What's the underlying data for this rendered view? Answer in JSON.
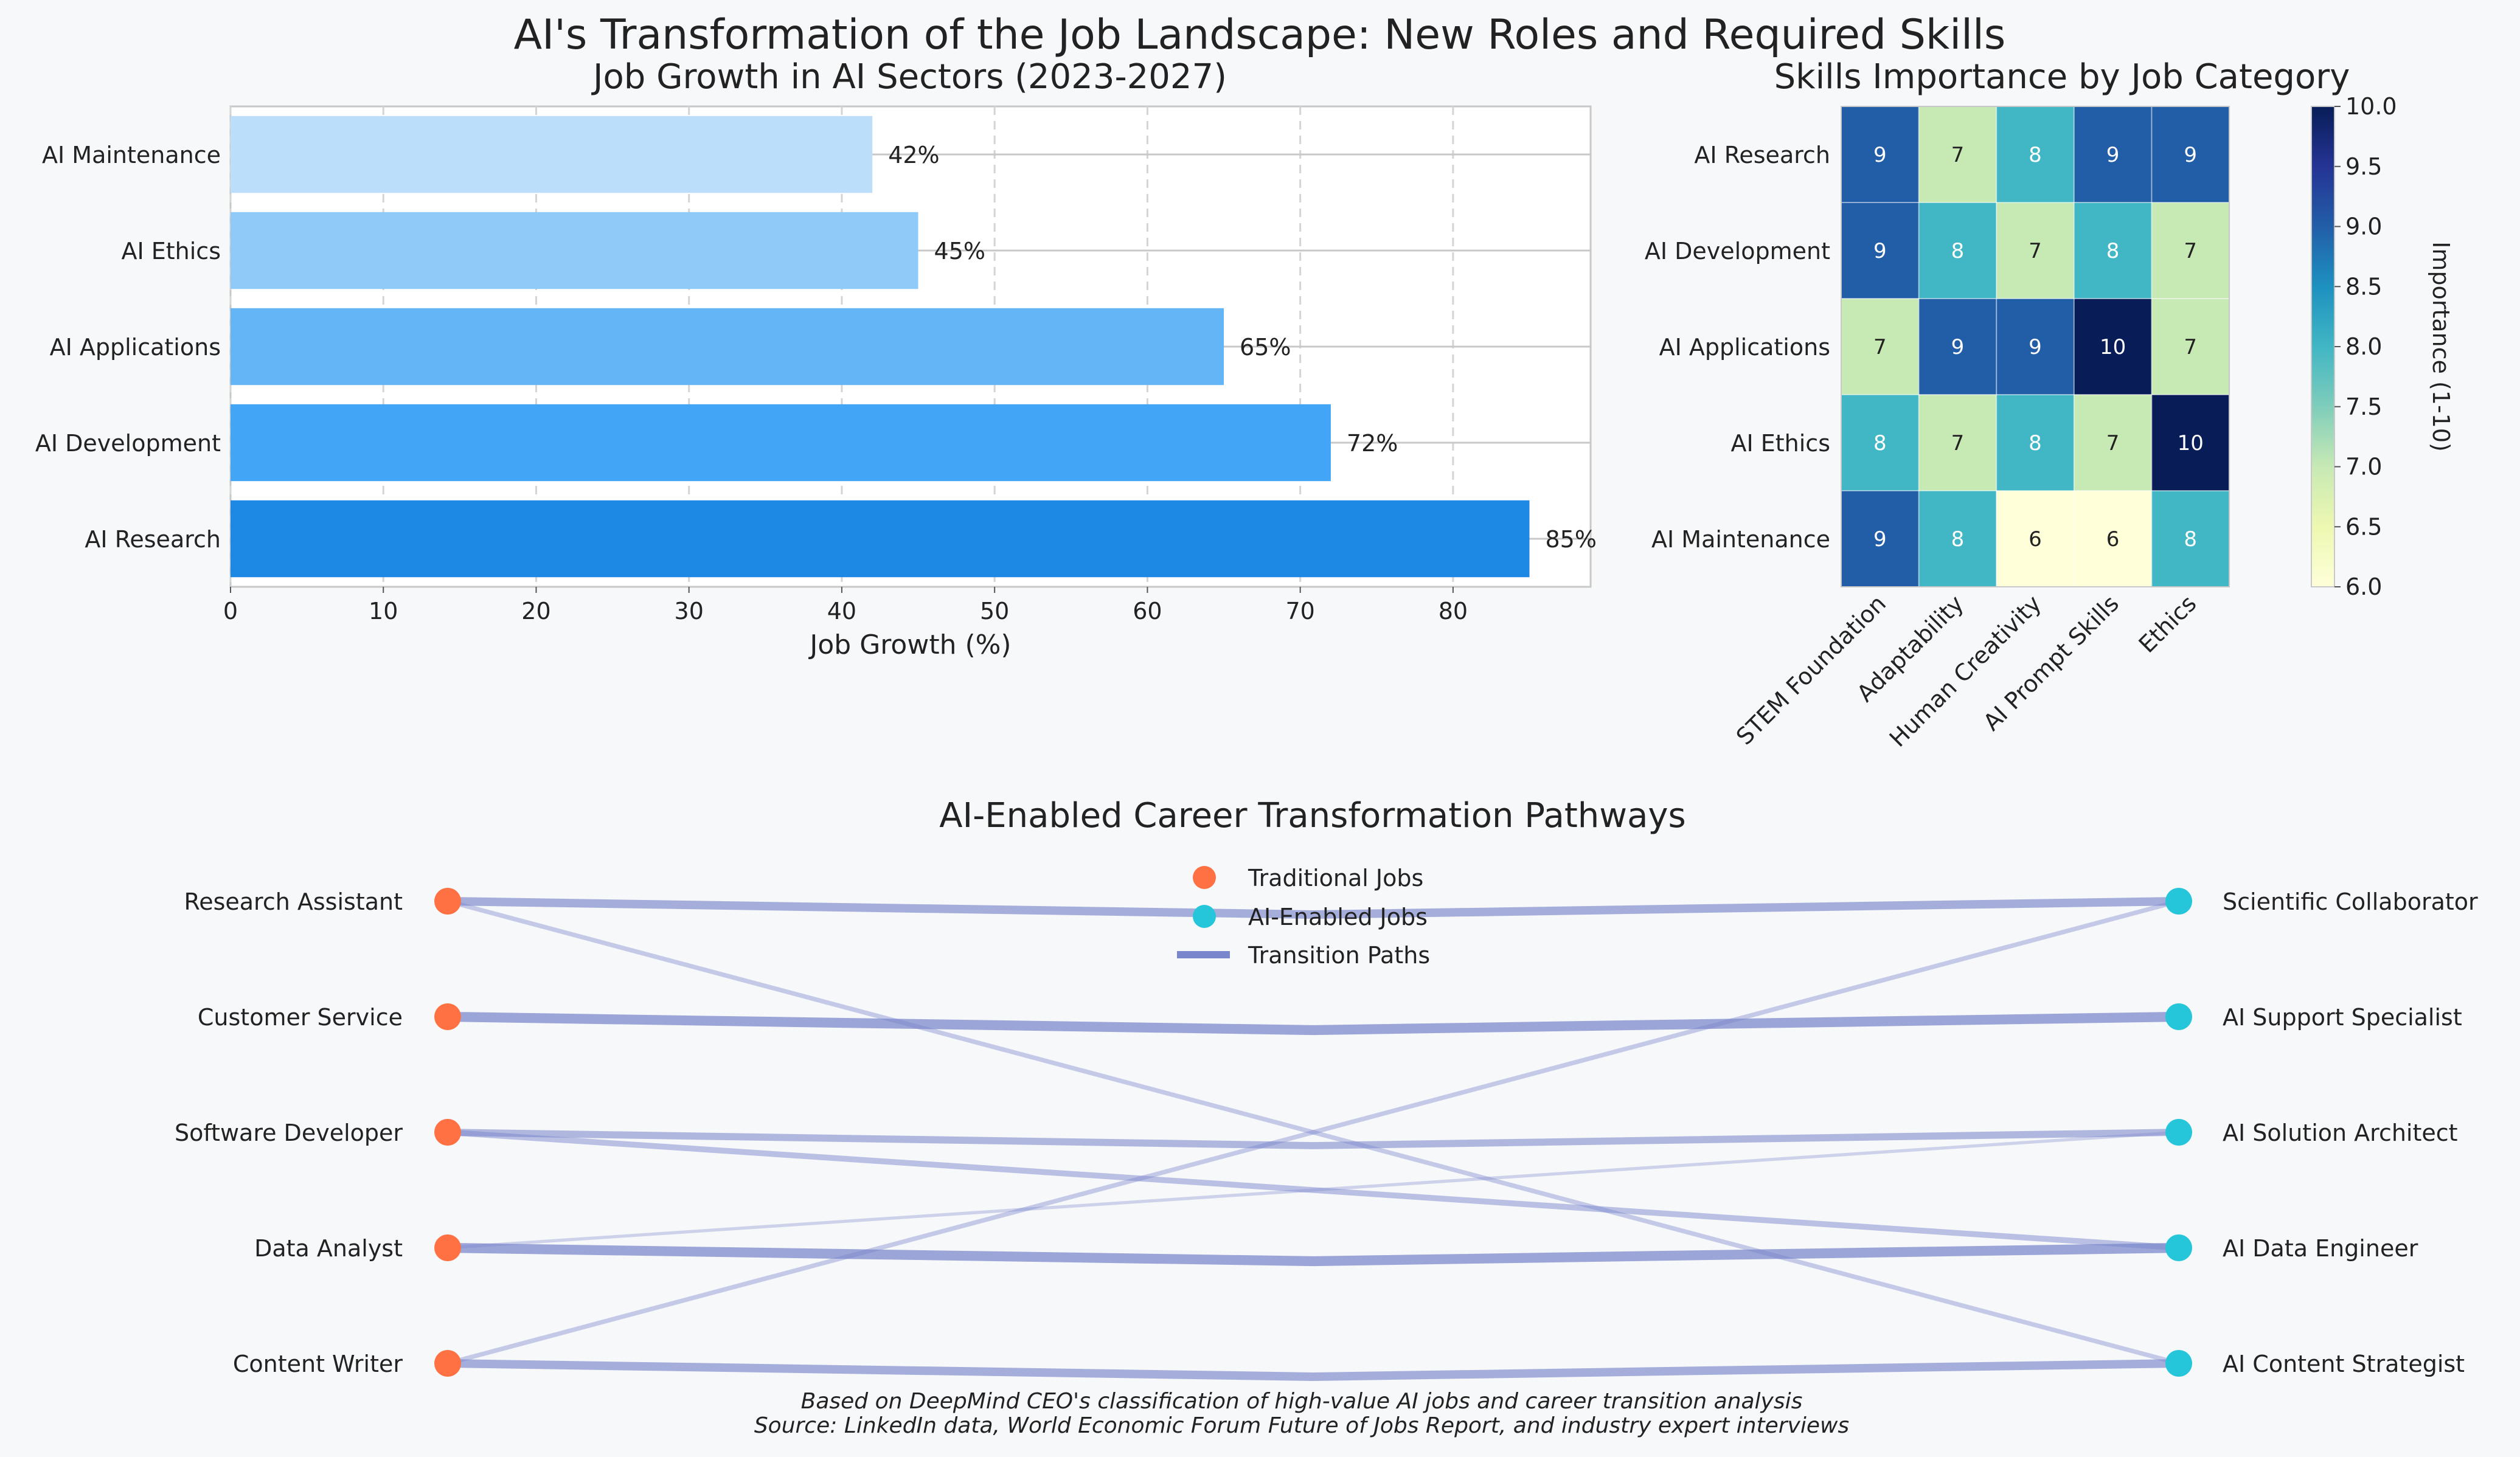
{
  "figure": {
    "title": "AI's Transformation of the Job Landscape: New Roles and Required Skills",
    "footnote_line1": "Based on DeepMind CEO's classification of high-value AI jobs and career transition analysis",
    "footnote_line2": "Source: LinkedIn data, World Economic Forum Future of Jobs Report, and industry expert interviews"
  },
  "chart_data": [
    {
      "type": "bar",
      "orientation": "horizontal",
      "title": "Job Growth in AI Sectors (2023-2027)",
      "xlabel": "Job Growth (%)",
      "ylabel": "",
      "categories": [
        "AI Research",
        "AI Development",
        "AI Applications",
        "AI Ethics",
        "AI Maintenance"
      ],
      "values": [
        85,
        72,
        65,
        45,
        42
      ],
      "data_labels": [
        "85%",
        "72%",
        "65%",
        "45%",
        "42%"
      ],
      "colors": [
        "#1e88e5",
        "#42a5f5",
        "#64b5f6",
        "#90caf9",
        "#bbdefb"
      ],
      "xlim": [
        0,
        89
      ],
      "xticks": [
        0,
        10,
        20,
        30,
        40,
        50,
        60,
        70,
        80
      ],
      "grid": true
    },
    {
      "type": "heatmap",
      "title": "Skills Importance by Job Category",
      "rows": [
        "AI Research",
        "AI Development",
        "AI Applications",
        "AI Ethics",
        "AI Maintenance"
      ],
      "columns": [
        "STEM Foundation",
        "Adaptability",
        "Human Creativity",
        "AI Prompt Skills",
        "Ethics"
      ],
      "values": [
        [
          9,
          7,
          8,
          9,
          9
        ],
        [
          9,
          8,
          7,
          8,
          7
        ],
        [
          7,
          9,
          9,
          10,
          7
        ],
        [
          8,
          7,
          8,
          7,
          10
        ],
        [
          9,
          8,
          6,
          6,
          8
        ]
      ],
      "colormap": "YlGnBu",
      "colorbar_label": "Importance (1-10)",
      "colorbar_range": [
        6.0,
        10.0
      ],
      "colorbar_ticks": [
        "6.0",
        "6.5",
        "7.0",
        "7.5",
        "8.0",
        "8.5",
        "9.0",
        "9.5",
        "10.0"
      ]
    },
    {
      "type": "network",
      "title": "AI-Enabled Career Transformation Pathways",
      "sources": [
        "Research Assistant",
        "Customer Service",
        "Software Developer",
        "Data Analyst",
        "Content Writer"
      ],
      "targets": [
        "Scientific Collaborator",
        "AI Support Specialist",
        "AI Solution Architect",
        "AI Data Engineer",
        "AI Content Strategist"
      ],
      "links": [
        {
          "from": 0,
          "to": 0,
          "weight": 5
        },
        {
          "from": 0,
          "to": 4,
          "weight": 2
        },
        {
          "from": 1,
          "to": 1,
          "weight": 6
        },
        {
          "from": 2,
          "to": 2,
          "weight": 4
        },
        {
          "from": 2,
          "to": 3,
          "weight": 3
        },
        {
          "from": 3,
          "to": 3,
          "weight": 6
        },
        {
          "from": 3,
          "to": 2,
          "weight": 1
        },
        {
          "from": 4,
          "to": 4,
          "weight": 5
        },
        {
          "from": 4,
          "to": 0,
          "weight": 2
        }
      ],
      "legend": [
        "Traditional Jobs",
        "AI-Enabled Jobs",
        "Transition Paths"
      ],
      "legend_position": "top-center",
      "colors": {
        "traditional": "#ff7043",
        "ai_enabled": "#26c6da",
        "path": "#7986cb"
      }
    }
  ]
}
